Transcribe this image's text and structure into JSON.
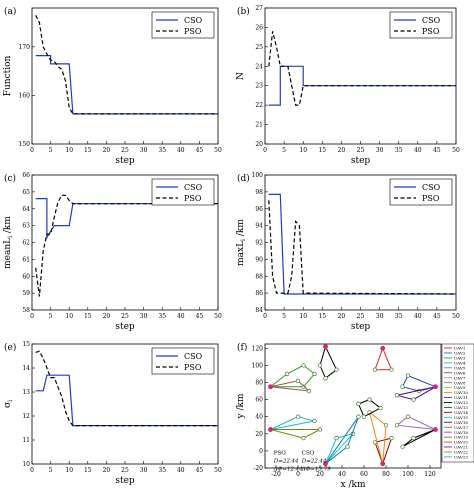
{
  "chart_data": [
    {
      "panel": "(a)",
      "type": "line",
      "xlabel": "step",
      "ylabel": "Function",
      "xlim": [
        0,
        50
      ],
      "ylim": [
        150,
        178
      ],
      "xticks": [
        0,
        5,
        10,
        15,
        20,
        25,
        30,
        35,
        40,
        45,
        50
      ],
      "yticks": [
        150,
        160,
        170
      ],
      "legend_position": "top-right",
      "series": [
        {
          "name": "CSO",
          "style": "solid",
          "color": "#1f3cc8",
          "points": [
            [
              1,
              168.2
            ],
            [
              5,
              168.2
            ],
            [
              5,
              166.5
            ],
            [
              10,
              166.5
            ],
            [
              11,
              156.2
            ],
            [
              50,
              156.2
            ]
          ]
        },
        {
          "name": "PSO",
          "style": "dashed",
          "color": "#000000",
          "points": [
            [
              1,
              176.5
            ],
            [
              2,
              175
            ],
            [
              3,
              170
            ],
            [
              4,
              168.5
            ],
            [
              5,
              167.3
            ],
            [
              6,
              167
            ],
            [
              7,
              166
            ],
            [
              8,
              165.3
            ],
            [
              9,
              163
            ],
            [
              10,
              157.5
            ],
            [
              11,
              156.2
            ],
            [
              50,
              156.2
            ]
          ]
        }
      ]
    },
    {
      "panel": "(b)",
      "type": "line",
      "xlabel": "step",
      "ylabel": "N",
      "xlim": [
        0,
        50
      ],
      "ylim": [
        20,
        27
      ],
      "xticks": [
        0,
        5,
        10,
        15,
        20,
        25,
        30,
        35,
        40,
        45,
        50
      ],
      "yticks": [
        20,
        21,
        22,
        23,
        24,
        25,
        26,
        27
      ],
      "legend_position": "top-right",
      "series": [
        {
          "name": "CSO",
          "style": "solid",
          "color": "#1f3cc8",
          "points": [
            [
              1,
              22
            ],
            [
              4,
              22
            ],
            [
              4,
              24
            ],
            [
              10,
              24
            ],
            [
              10,
              23
            ],
            [
              50,
              23
            ]
          ]
        },
        {
          "name": "PSO",
          "style": "dashed",
          "color": "#000000",
          "points": [
            [
              1,
              24
            ],
            [
              2,
              25.8
            ],
            [
              3,
              25
            ],
            [
              4,
              24
            ],
            [
              6,
              24
            ],
            [
              7,
              23
            ],
            [
              8,
              22
            ],
            [
              9,
              22
            ],
            [
              10,
              23
            ],
            [
              50,
              23
            ]
          ]
        }
      ]
    },
    {
      "panel": "(c)",
      "type": "line",
      "xlabel": "step",
      "ylabel": "mean{L_i} /km",
      "xlim": [
        0,
        50
      ],
      "ylim": [
        58,
        66
      ],
      "xticks": [
        0,
        5,
        10,
        15,
        20,
        25,
        30,
        35,
        40,
        45,
        50
      ],
      "yticks": [
        58,
        59,
        60,
        61,
        62,
        63,
        64,
        65,
        66
      ],
      "legend_position": "top-right",
      "series": [
        {
          "name": "CSO",
          "style": "solid",
          "color": "#1f3cc8",
          "points": [
            [
              1,
              64.6
            ],
            [
              4,
              64.6
            ],
            [
              4,
              62.3
            ],
            [
              6,
              63
            ],
            [
              10,
              63
            ],
            [
              11,
              64.3
            ],
            [
              50,
              64.3
            ]
          ]
        },
        {
          "name": "PSO",
          "style": "dashed",
          "color": "#000000",
          "points": [
            [
              1,
              60.5
            ],
            [
              2,
              58.8
            ],
            [
              3,
              61.5
            ],
            [
              4,
              62.5
            ],
            [
              5,
              62.5
            ],
            [
              6,
              63.5
            ],
            [
              7,
              64.4
            ],
            [
              8,
              64.8
            ],
            [
              9,
              64.8
            ],
            [
              10,
              64.5
            ],
            [
              11,
              64.3
            ],
            [
              50,
              64.3
            ]
          ]
        }
      ]
    },
    {
      "panel": "(d)",
      "type": "line",
      "xlabel": "step",
      "ylabel": "max{L_i} /km",
      "xlim": [
        0,
        50
      ],
      "ylim": [
        84,
        100
      ],
      "xticks": [
        0,
        5,
        10,
        15,
        20,
        25,
        30,
        35,
        40,
        45,
        50
      ],
      "yticks": [
        84,
        86,
        88,
        90,
        92,
        94,
        96,
        98,
        100
      ],
      "legend_position": "top-right",
      "series": [
        {
          "name": "CSO",
          "style": "solid",
          "color": "#1f3cc8",
          "points": [
            [
              1,
              97.7
            ],
            [
              4,
              97.7
            ],
            [
              5,
              85.9
            ],
            [
              50,
              85.9
            ]
          ]
        },
        {
          "name": "PSO",
          "style": "dashed",
          "color": "#000000",
          "points": [
            [
              1,
              97
            ],
            [
              2,
              88
            ],
            [
              3,
              86
            ],
            [
              6,
              86
            ],
            [
              7,
              88
            ],
            [
              8,
              94.5
            ],
            [
              9,
              94
            ],
            [
              10,
              86
            ],
            [
              50,
              85.9
            ]
          ]
        }
      ]
    },
    {
      "panel": "(e)",
      "type": "line",
      "xlabel": "step",
      "ylabel": "σ_i",
      "xlim": [
        0,
        50
      ],
      "ylim": [
        10,
        15
      ],
      "xticks": [
        0,
        5,
        10,
        15,
        20,
        25,
        30,
        35,
        40,
        45,
        50
      ],
      "yticks": [
        10,
        11,
        12,
        13,
        14,
        15
      ],
      "legend_position": "top-right",
      "series": [
        {
          "name": "CSO",
          "style": "solid",
          "color": "#1f3cc8",
          "points": [
            [
              1,
              13.05
            ],
            [
              3,
              13.05
            ],
            [
              4,
              13.7
            ],
            [
              10,
              13.7
            ],
            [
              11,
              11.6
            ],
            [
              50,
              11.6
            ]
          ]
        },
        {
          "name": "PSO",
          "style": "dashed",
          "color": "#000000",
          "points": [
            [
              1,
              14.65
            ],
            [
              2,
              14.7
            ],
            [
              3,
              14.4
            ],
            [
              4,
              14
            ],
            [
              5,
              13.6
            ],
            [
              6,
              13.6
            ],
            [
              7,
              13.2
            ],
            [
              8,
              12.8
            ],
            [
              9,
              12.2
            ],
            [
              10,
              11.8
            ],
            [
              11,
              11.6
            ],
            [
              50,
              11.6
            ]
          ]
        }
      ]
    },
    {
      "panel": "(f)",
      "type": "scatter",
      "xlabel": "x /km",
      "ylabel": "y /km",
      "xlim": [
        -30,
        130
      ],
      "ylim": [
        -20,
        125
      ],
      "xticks": [
        -20,
        0,
        20,
        40,
        60,
        80,
        100,
        120
      ],
      "yticks": [
        -20,
        0,
        20,
        40,
        60,
        80,
        100,
        120
      ],
      "legend_position": "right-outside",
      "uav_labels": [
        "UAV1",
        "UAV2",
        "UAV3",
        "UAV4",
        "UAV5",
        "UAV6",
        "UAV7",
        "UAV8",
        "UAV9",
        "UAV10",
        "UAV11",
        "UAV12",
        "UAV13",
        "UAV14",
        "UAV15",
        "UAV16",
        "UAV17",
        "UAV18",
        "UAV19",
        "UAV20",
        "UAV21",
        "UAV22",
        "UAV23"
      ],
      "uav_colors": [
        "#d62728",
        "#1f77b4",
        "#2ca02c",
        "#17becf",
        "#9467bd",
        "#8c564b",
        "#e377c2",
        "#7f7f7f",
        "#bcbd22",
        "#ff7f0e",
        "#1f3cc8",
        "#000000",
        "#006400",
        "#8b0000",
        "#00ced1",
        "#4b0082",
        "#808000",
        "#ff1493",
        "#2e8b57",
        "#a0522d",
        "#483d8b",
        "#b8860b",
        "#20b2aa"
      ],
      "annotation": {
        "pso_label": "PSO",
        "cso_label": "CSO",
        "pso_D": "D=22.44",
        "pso_dd": "ΔΦ=12.44",
        "cso_D": "D=22.44",
        "cso_dd": "ΔΦ=13.79"
      },
      "depots": [
        [
          -25,
          75
        ],
        [
          25,
          122
        ],
        [
          77,
          120
        ],
        [
          125,
          75
        ],
        [
          -25,
          25
        ],
        [
          125,
          25
        ],
        [
          25,
          -15
        ],
        [
          77,
          -15
        ]
      ],
      "routes": [
        {
          "color": "#2ca02c",
          "points": [
            [
              -25,
              75
            ],
            [
              -10,
              90
            ],
            [
              5,
              100
            ],
            [
              15,
              90
            ],
            [
              5,
              75
            ],
            [
              -25,
              75
            ]
          ]
        },
        {
          "color": "#8c564b",
          "points": [
            [
              -25,
              75
            ],
            [
              0,
              82
            ],
            [
              10,
              70
            ],
            [
              -25,
              75
            ]
          ]
        },
        {
          "color": "#000000",
          "points": [
            [
              25,
              122
            ],
            [
              20,
              100
            ],
            [
              25,
              85
            ],
            [
              35,
              95
            ],
            [
              25,
              122
            ]
          ]
        },
        {
          "color": "#d62728",
          "points": [
            [
              77,
              120
            ],
            [
              70,
              95
            ],
            [
              85,
              95
            ],
            [
              77,
              120
            ]
          ]
        },
        {
          "color": "#1f3cc8",
          "points": [
            [
              125,
              75
            ],
            [
              100,
              88
            ],
            [
              95,
              75
            ],
            [
              110,
              70
            ],
            [
              125,
              75
            ]
          ]
        },
        {
          "color": "#4b0082",
          "points": [
            [
              125,
              75
            ],
            [
              105,
              60
            ],
            [
              90,
              65
            ],
            [
              125,
              75
            ]
          ]
        },
        {
          "color": "#17becf",
          "points": [
            [
              -25,
              25
            ],
            [
              0,
              40
            ],
            [
              15,
              35
            ],
            [
              -25,
              25
            ]
          ]
        },
        {
          "color": "#808000",
          "points": [
            [
              -25,
              25
            ],
            [
              5,
              15
            ],
            [
              20,
              25
            ],
            [
              -25,
              25
            ]
          ]
        },
        {
          "color": "#9467bd",
          "points": [
            [
              125,
              25
            ],
            [
              100,
              40
            ],
            [
              90,
              30
            ],
            [
              125,
              25
            ]
          ]
        },
        {
          "color": "#000000",
          "points": [
            [
              125,
              25
            ],
            [
              105,
              15
            ],
            [
              95,
              5
            ],
            [
              125,
              25
            ]
          ]
        },
        {
          "color": "#00ced1",
          "points": [
            [
              25,
              -15
            ],
            [
              35,
              15
            ],
            [
              50,
              20
            ],
            [
              25,
              -15
            ]
          ]
        },
        {
          "color": "#8b0000",
          "points": [
            [
              77,
              -15
            ],
            [
              70,
              10
            ],
            [
              85,
              15
            ],
            [
              77,
              -15
            ]
          ]
        },
        {
          "color": "#1f77b4",
          "points": [
            [
              25,
              -15
            ],
            [
              45,
              5
            ],
            [
              55,
              40
            ],
            [
              25,
              -15
            ]
          ]
        },
        {
          "color": "#ff7f0e",
          "points": [
            [
              77,
              -15
            ],
            [
              80,
              30
            ],
            [
              65,
              45
            ],
            [
              77,
              -15
            ]
          ]
        },
        {
          "color": "#000000",
          "points": [
            [
              55,
              55
            ],
            [
              65,
              60
            ],
            [
              75,
              50
            ],
            [
              60,
              40
            ],
            [
              55,
              55
            ]
          ]
        }
      ]
    }
  ]
}
